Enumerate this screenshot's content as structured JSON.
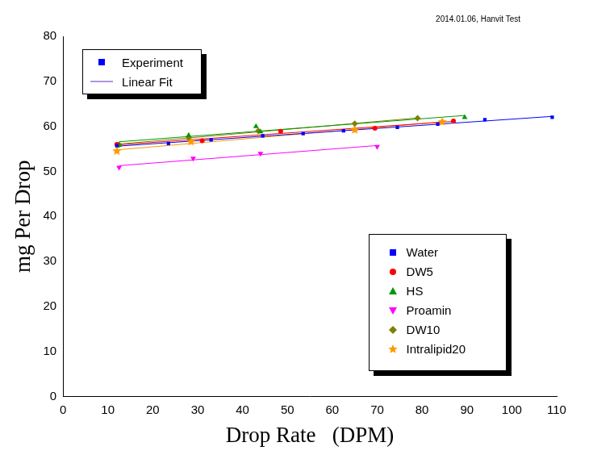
{
  "chart_data": {
    "type": "scatter",
    "x_label": "Drop Rate   (DPM)",
    "y_label": "mg Per Drop",
    "annotations": {
      "note": "2014.01.06, Hanvit Test",
      "experiment": "Experiment",
      "fit": "Linear Fit"
    },
    "xlim": [
      0,
      110
    ],
    "xticks": [
      0,
      10,
      20,
      30,
      40,
      50,
      60,
      70,
      80,
      90,
      100,
      110
    ],
    "ylim": [
      0,
      80
    ],
    "yticks": [
      0,
      10,
      20,
      30,
      40,
      50,
      60,
      70,
      80
    ],
    "grid": false,
    "legend": "lower right",
    "series": [
      {
        "name": "Water",
        "color": "#0000ff",
        "marker": "square",
        "x": [
          12,
          23.5,
          33,
          44.5,
          53.5,
          62.5,
          74.5,
          83.5,
          94,
          109
        ],
        "values": [
          55.7,
          56.2,
          57,
          57.9,
          58.4,
          59,
          59.8,
          60.5,
          61.5,
          62
        ]
      },
      {
        "name": "DW5",
        "color": "#ff0000",
        "marker": "circle",
        "x": [
          12,
          31,
          48.5,
          69.5,
          87
        ],
        "values": [
          56,
          56.8,
          58.9,
          59.6,
          61.2
        ]
      },
      {
        "name": "HS",
        "color": "#009900",
        "marker": "triangle",
        "x": [
          12.5,
          28,
          43,
          44,
          89.5
        ],
        "values": [
          55.8,
          58,
          60,
          58.8,
          62
        ]
      },
      {
        "name": "Proamin",
        "color": "#ff00ff",
        "marker": "triangle-down",
        "x": [
          12.5,
          29,
          44,
          70
        ],
        "values": [
          50.9,
          52.9,
          54,
          55.5
        ]
      },
      {
        "name": "DW10",
        "color": "#808000",
        "marker": "diamond",
        "x": [
          12.5,
          28,
          43.5,
          65,
          79
        ],
        "values": [
          55.9,
          57.5,
          59,
          60.6,
          61.8
        ]
      },
      {
        "name": "Intralipid20",
        "color": "#ff9900",
        "marker": "star",
        "x": [
          12,
          28.5,
          65,
          84.5
        ],
        "values": [
          54.5,
          56.6,
          59.2,
          61
        ]
      }
    ]
  }
}
